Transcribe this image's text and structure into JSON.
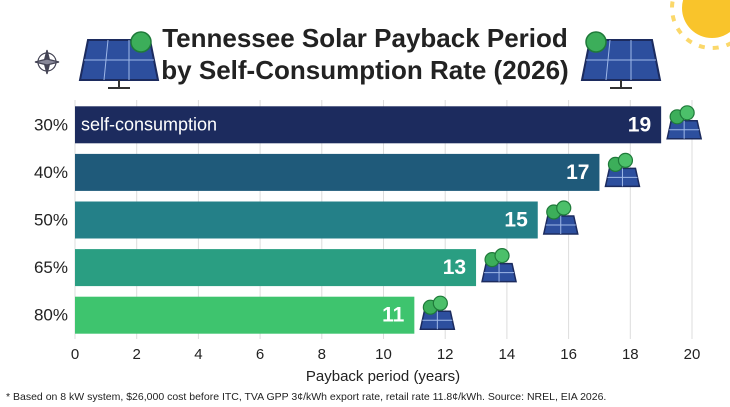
{
  "chart_data": {
    "type": "hbar",
    "title": [
      "Tennessee Solar Payback Period",
      "by Self-Consumption Rate (2026)"
    ],
    "categories": [
      "30%",
      "40%",
      "50%",
      "65%",
      "80%"
    ],
    "values": [
      19,
      17,
      15,
      13,
      11
    ],
    "colors": [
      "#1c2b5e",
      "#1f5a7a",
      "#248088",
      "#2a9e82",
      "#3ec46e"
    ],
    "annotation": "self-consumption",
    "xlim": [
      0,
      20
    ],
    "xticks": [
      0,
      2,
      4,
      6,
      8,
      10,
      12,
      14,
      16,
      18,
      20
    ],
    "xlabel": "Payback period (years)",
    "grid": true,
    "footnote": "* Based on 8 kW system, $26,000 cost before ITC, TVA GPP 3¢/kWh export rate, retail rate 11.8¢/kWh. Source: NREL, EIA 2026."
  }
}
